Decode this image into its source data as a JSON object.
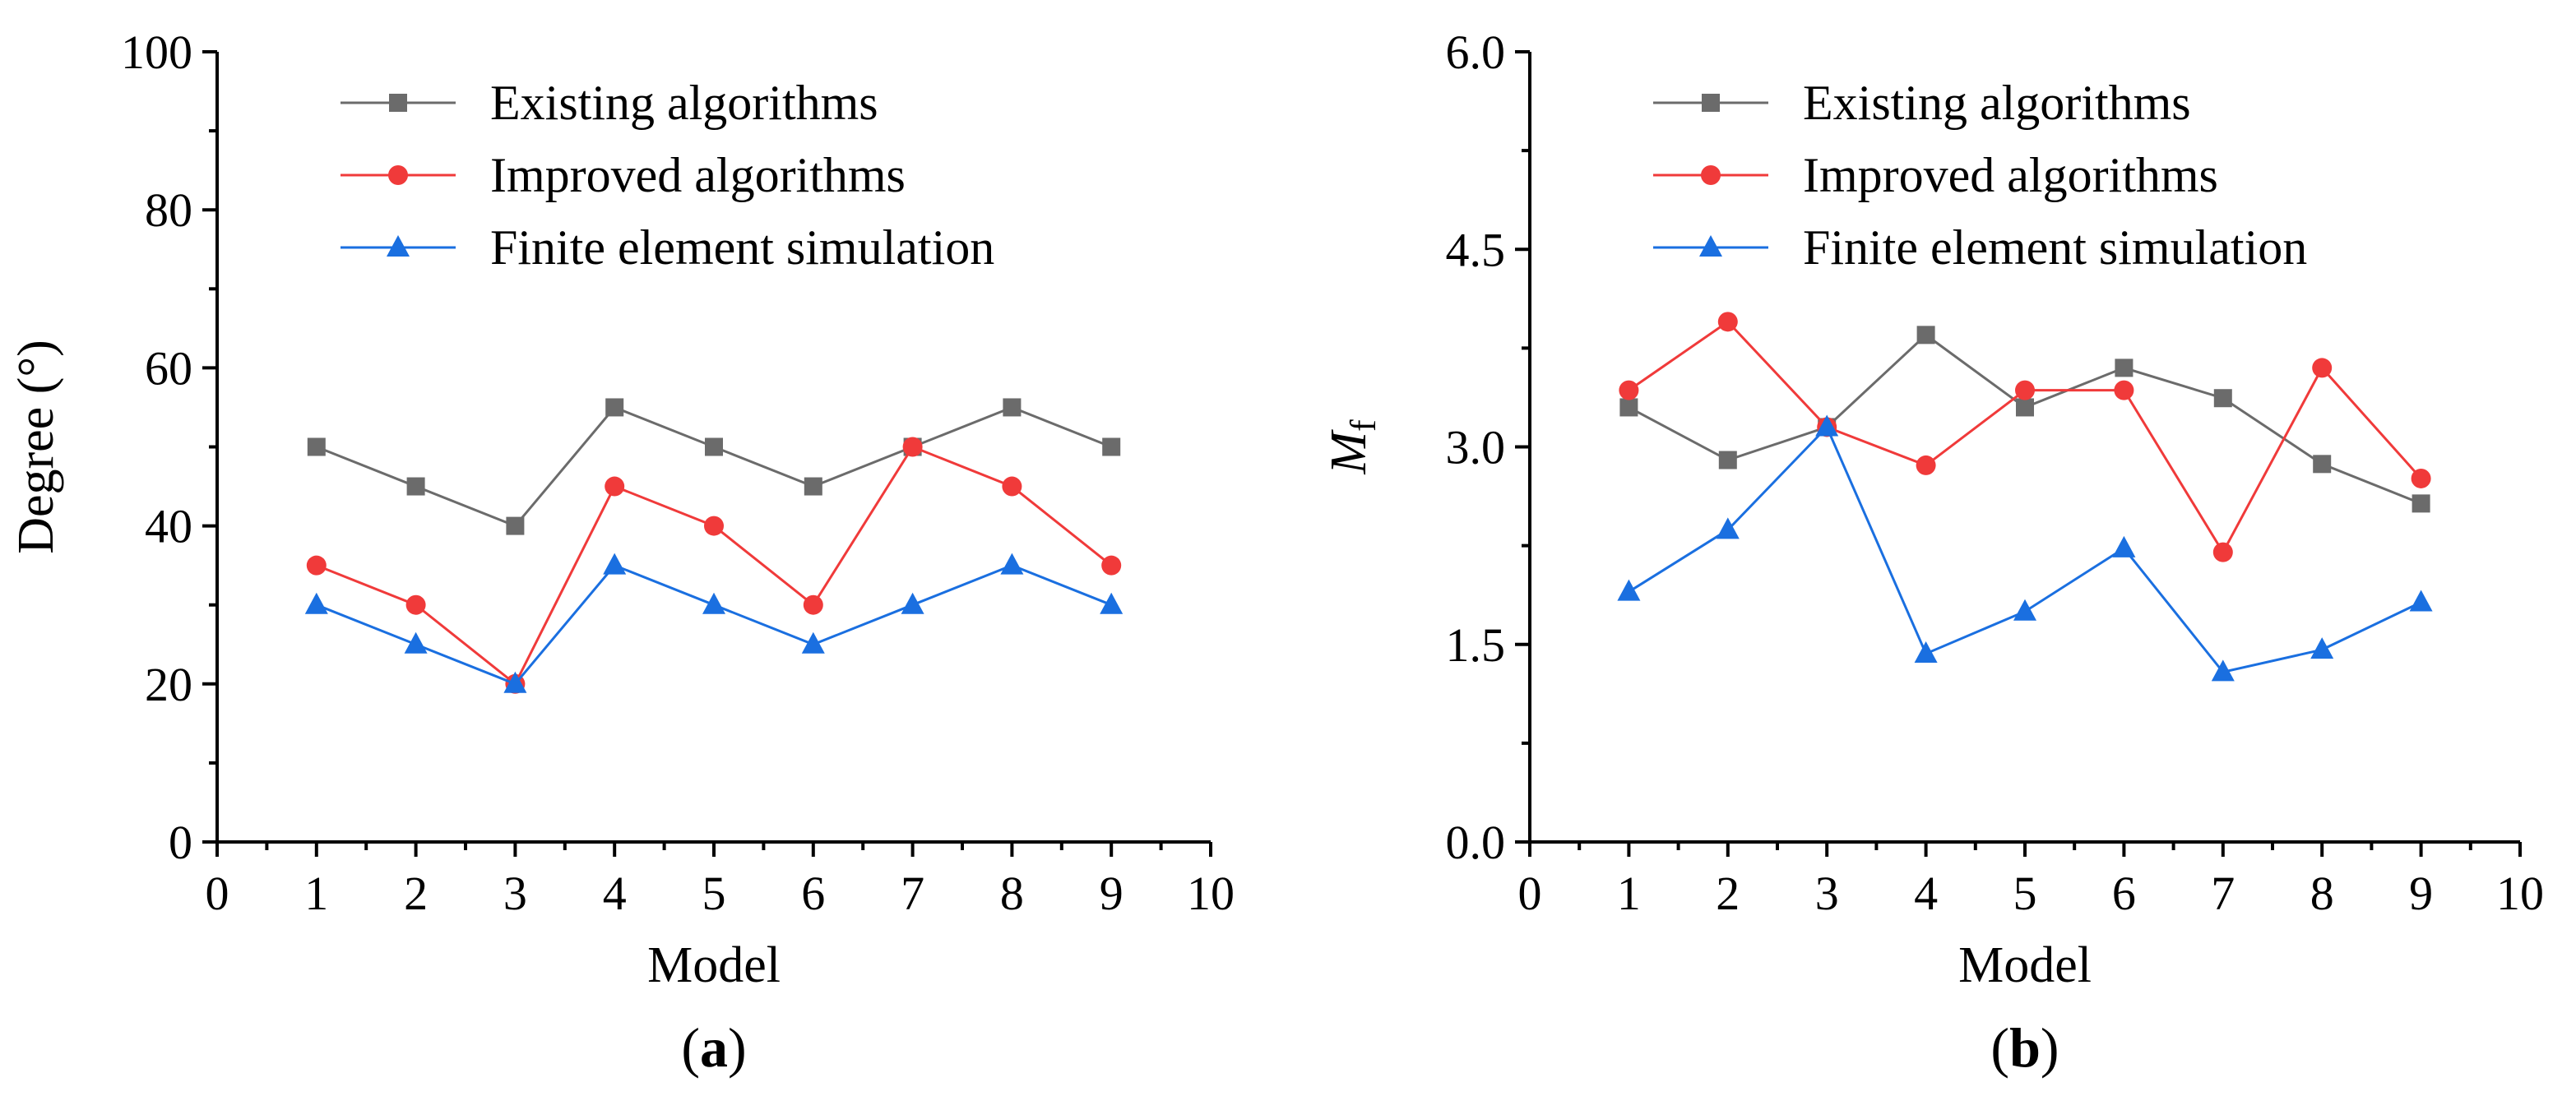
{
  "chart_data": [
    {
      "type": "line",
      "panel_label": "a",
      "xlabel": "Model",
      "ylabel": "Degree (°)",
      "xlim": [
        0,
        10
      ],
      "ylim": [
        0,
        100
      ],
      "xticks": [
        "0",
        "1",
        "2",
        "3",
        "4",
        "5",
        "6",
        "7",
        "8",
        "9",
        "10"
      ],
      "yticks": [
        "0",
        "20",
        "40",
        "60",
        "80",
        "100"
      ],
      "legend_position": "top-right",
      "x": [
        1,
        2,
        3,
        4,
        5,
        6,
        7,
        8,
        9
      ],
      "series": [
        {
          "name": "Existing algorithms",
          "color": "#6b6b6b",
          "marker": "square",
          "values": [
            50,
            45,
            40,
            55,
            50,
            45,
            50,
            55,
            50
          ]
        },
        {
          "name": "Improved algorithms",
          "color": "#f03a3a",
          "marker": "circle",
          "values": [
            35,
            30,
            20,
            45,
            40,
            30,
            50,
            45,
            35
          ]
        },
        {
          "name": "Finite element simulation",
          "color": "#1a6fe0",
          "marker": "triangle",
          "values": [
            30,
            25,
            20,
            35,
            30,
            25,
            30,
            35,
            30
          ]
        }
      ]
    },
    {
      "type": "line",
      "panel_label": "b",
      "xlabel": "Model",
      "ylabel_main": "M",
      "ylabel_sub": "f",
      "xlim": [
        0,
        10
      ],
      "ylim": [
        0,
        6
      ],
      "xticks": [
        "0",
        "1",
        "2",
        "3",
        "4",
        "5",
        "6",
        "7",
        "8",
        "9",
        "10"
      ],
      "yticks": [
        "0.0",
        "1.5",
        "3.0",
        "4.5",
        "6.0"
      ],
      "legend_position": "top-right",
      "x": [
        1,
        2,
        3,
        4,
        5,
        6,
        7,
        8,
        9
      ],
      "series": [
        {
          "name": "Existing algorithms",
          "color": "#6b6b6b",
          "marker": "square",
          "values": [
            3.3,
            2.9,
            3.15,
            3.85,
            3.3,
            3.6,
            3.37,
            2.87,
            2.57
          ]
        },
        {
          "name": "Improved algorithms",
          "color": "#f03a3a",
          "marker": "circle",
          "values": [
            3.43,
            3.95,
            3.15,
            2.86,
            3.43,
            3.43,
            2.2,
            3.6,
            2.76
          ]
        },
        {
          "name": "Finite element simulation",
          "color": "#1a6fe0",
          "marker": "triangle",
          "values": [
            1.9,
            2.37,
            3.15,
            1.43,
            1.75,
            2.23,
            1.29,
            1.46,
            1.82
          ]
        }
      ]
    }
  ]
}
